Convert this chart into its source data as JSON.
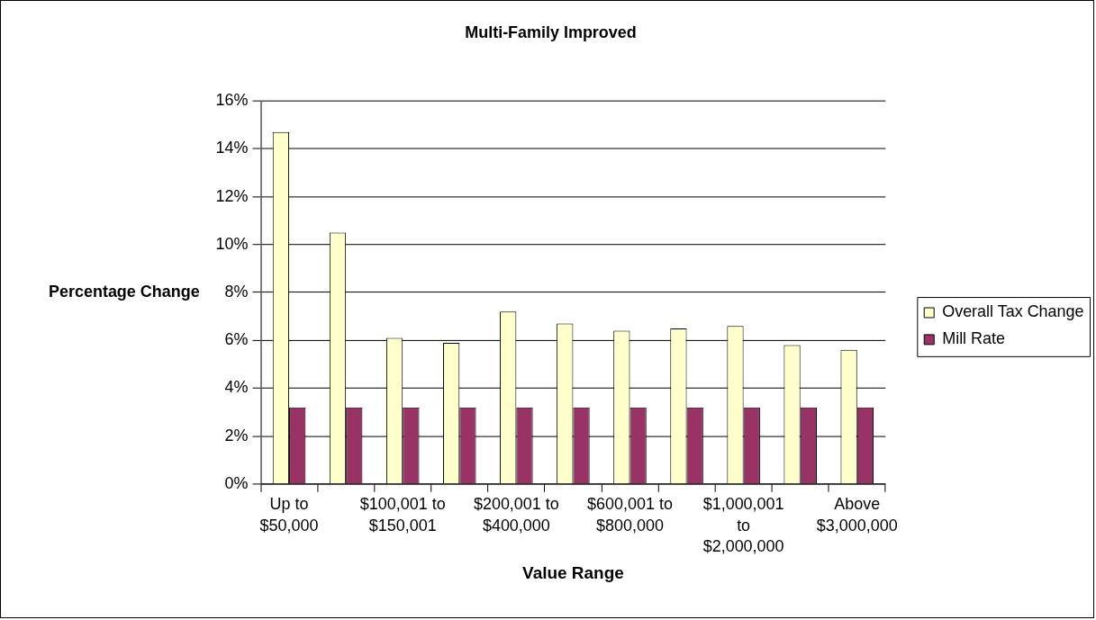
{
  "chart_data": {
    "type": "bar",
    "title": "Multi-Family Improved",
    "xlabel": "Value Range",
    "ylabel": "Percentage Change",
    "categories": [
      "Up to $50,000",
      null,
      "$100,001 to $150,001",
      null,
      "$200,001 to $400,000",
      null,
      "$600,001 to $800,000",
      null,
      "$1,000,001 to $2,000,000",
      null,
      "Above $3,000,000"
    ],
    "series": [
      {
        "name": "Overall Tax Change",
        "color": "#ffffcc",
        "values": [
          14.7,
          10.5,
          6.1,
          5.9,
          7.2,
          6.7,
          6.4,
          6.5,
          6.6,
          5.8,
          5.6
        ]
      },
      {
        "name": "Mill Rate",
        "color": "#993366",
        "values": [
          3.2,
          3.2,
          3.2,
          3.2,
          3.2,
          3.2,
          3.2,
          3.2,
          3.2,
          3.2,
          3.2
        ]
      }
    ],
    "ylim": [
      0,
      16
    ],
    "yticks": [
      {
        "value": 0,
        "label": "0%"
      },
      {
        "value": 2,
        "label": "2%"
      },
      {
        "value": 4,
        "label": "4%"
      },
      {
        "value": 6,
        "label": "6%"
      },
      {
        "value": 8,
        "label": "8%"
      },
      {
        "value": 10,
        "label": "10%"
      },
      {
        "value": 12,
        "label": "12%"
      },
      {
        "value": 14,
        "label": "14%"
      },
      {
        "value": 16,
        "label": "16%"
      }
    ],
    "grid": "y",
    "legend": "right"
  }
}
